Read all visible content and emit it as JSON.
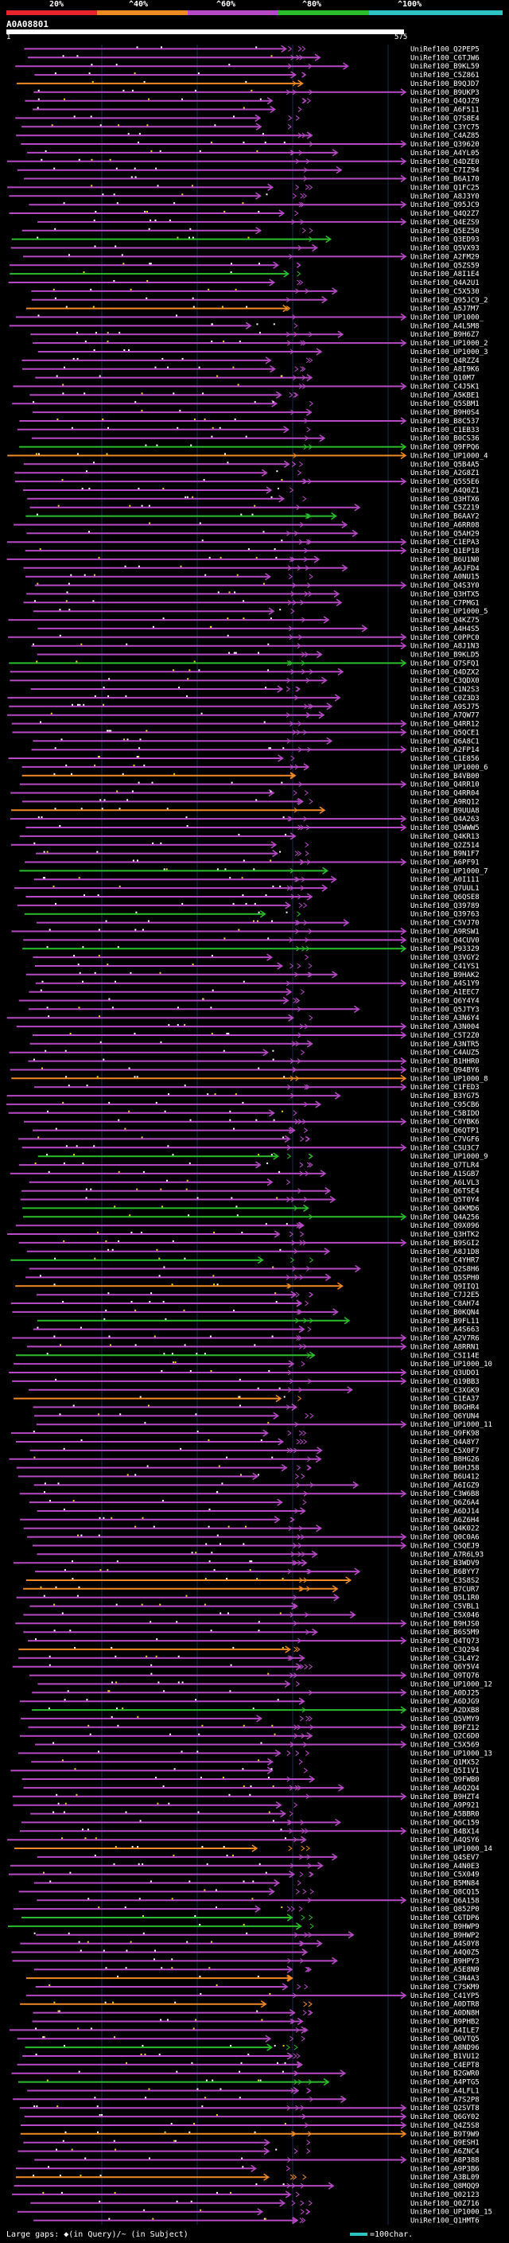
{
  "legend": {
    "labels": [
      "20%",
      "^40%",
      "^60%",
      "^80%",
      "^100%"
    ],
    "colors": [
      "#e8242c",
      "#f08a24",
      "#b64ac4",
      "#2bbd2b",
      "#2cc3c3"
    ]
  },
  "query": {
    "id": "A0A08801",
    "start": "1",
    "end": "575"
  },
  "chart_data": {
    "type": "alignment-overview",
    "query_length": 575,
    "hits": [
      "UniRef100_Q2PEP5",
      "UniRef100_C6TJW6",
      "UniRef100_B9KL59",
      "UniRef100_C5Z861",
      "UniRef100_B9QJD7",
      "UniRef100_B9UKP3",
      "UniRef100_Q4QJZ9",
      "UniRef100_A6F511",
      "UniRef100_Q7S8E4",
      "UniRef100_C3YC75",
      "UniRef100_C4AZ85",
      "UniRef100_Q39620",
      "UniRef100_A4YL05",
      "UniRef100_Q4DZE0",
      "UniRef100_C7IZ94",
      "UniRef100_B6A170",
      "UniRef100_Q1FC25",
      "UniRef100_A8J3Y0",
      "UniRef100_Q95JC9",
      "UniRef100_Q4Q2Z7",
      "UniRef100_Q4EZS9",
      "UniRef100_Q5EZ50",
      "UniRef100_Q3ED93",
      "UniRef100_Q5VX93",
      "UniRef100_A2FM29",
      "UniRef100_Q5ZS59",
      "UniRef100_A8I1E4",
      "UniRef100_Q4A2U1",
      "UniRef100_C5X530",
      "UniRef100_Q95JC9_2",
      "UniRef100_A5J7M7",
      "UniRef100_UP1000_",
      "UniRef100_A4L5M8",
      "UniRef100_B9H6Z7",
      "UniRef100_UP1000_2",
      "UniRef100_UP1000_3",
      "UniRef100_Q4RZZ4",
      "UniRef100_A8I9K6",
      "UniRef100_Q10M7",
      "UniRef100_C4J5K1",
      "UniRef100_A5KBE1",
      "UniRef100_Q5SBM1",
      "UniRef100_B9H0S4",
      "UniRef100_B8C537",
      "UniRef100_C1EB33",
      "UniRef100_B0CS36",
      "UniRef100_Q9FPQ6",
      "UniRef100_UP1000_4",
      "UniRef100_Q5B4A5",
      "UniRef100_A2G8Z1",
      "UniRef100_Q5S5E6",
      "UniRef100_A4Q0Z1",
      "UniRef100_Q3HTX6",
      "UniRef100_C5Z219",
      "UniRef100_B6AAY2",
      "UniRef100_A6RR08",
      "UniRef100_Q5AH29",
      "UniRef100_C1EPA3",
      "UniRef100_Q1EP18",
      "UniRef100_B6U1N0",
      "UniRef100_A6JFD4",
      "UniRef100_A0NU15",
      "UniRef100_Q4S3Y0",
      "UniRef100_Q3HTX5",
      "UniRef100_C7PMG1",
      "UniRef100_UP1000_5",
      "UniRef100_Q4KZ75",
      "UniRef100_A4H4S5",
      "UniRef100_C0PPC0",
      "UniRef100_A8J1N3",
      "UniRef100_B9KLD5",
      "UniRef100_Q7SFQ1",
      "UniRef100_Q4DZX2",
      "UniRef100_C3QDX0",
      "UniRef100_C1N2S3",
      "UniRef100_C0Z3D3",
      "UniRef100_A9SJ75",
      "UniRef100_A7QW77",
      "UniRef100_Q4RR12",
      "UniRef100_Q5QCE1",
      "UniRef100_Q6A8C1",
      "UniRef100_A2FP14",
      "UniRef100_C1E856",
      "UniRef100_UP1000_6",
      "UniRef100_B4VB00",
      "UniRef100_Q4RR10",
      "UniRef100_Q4RR04",
      "UniRef100_A9RQ12",
      "UniRef100_B9UUA8",
      "UniRef100_Q4A263",
      "UniRef100_Q5WWW5",
      "UniRef100_Q4KR13",
      "UniRef100_Q2Z514",
      "UniRef100_B9N1F7",
      "UniRef100_A6PF91",
      "UniRef100_UP1000_7",
      "UniRef100_A0I111",
      "UniRef100_Q7UUL1",
      "UniRef100_Q6QSE8",
      "UniRef100_Q39789",
      "UniRef100_Q39763",
      "UniRef100_C5VJ70",
      "UniRef100_A9RSW1",
      "UniRef100_Q4CUV0",
      "UniRef100_P93329",
      "UniRef100_Q3VGY2",
      "UniRef100_C41YS1",
      "UniRef100_B9HAK2",
      "UniRef100_A4S1Y9",
      "UniRef100_A1EEC7",
      "UniRef100_Q6Y4Y4",
      "UniRef100_Q5JTY3",
      "UniRef100_A3N6Y4",
      "UniRef100_A3N004",
      "UniRef100_C5T2Z0",
      "UniRef100_A3NTR5",
      "UniRef100_C4AUZ5",
      "UniRef100_B1HHR0",
      "UniRef100_Q94BY6",
      "UniRef100_UP1000_8",
      "UniRef100_C1FED3",
      "UniRef100_B3YG75",
      "UniRef100_C95CB6",
      "UniRef100_C5BIDO",
      "UniRef100_C0YBK6",
      "UniRef100_Q6QTP1",
      "UniRef100_C7VGF6",
      "UniRef100_C5U3C7",
      "UniRef100_UP1000_9",
      "UniRef100_Q7TLR4",
      "UniRef100_A1SGB7",
      "UniRef100_A6LVL3",
      "UniRef100_Q6TSE4",
      "UniRef100_Q5T0Y4",
      "UniRef100_Q4KMD6",
      "UniRef100_Q4A256",
      "UniRef100_Q9X096",
      "UniRef100_Q3HTK2",
      "UniRef100_B9SGI2",
      "UniRef100_A8J1D8",
      "UniRef100_C4YHR7",
      "UniRef100_Q2S8H6",
      "UniRef100_Q5SPH0",
      "UniRef100_Q9IIQ1",
      "UniRef100_C7J2E5",
      "UniRef100_C8AH74",
      "UniRef100_B0KQN4",
      "UniRef100_B9FL11",
      "UniRef100_A4S663",
      "UniRef100_A2V7R6",
      "UniRef100_A8RRN1",
      "UniRef100_C5I14E",
      "UniRef100_UP1000_10",
      "UniRef100_Q3UDO1",
      "UniRef100_Q19BB3",
      "UniRef100_C3XGK9",
      "UniRef100_C1EA37",
      "UniRef100_B0GHR4",
      "UniRef100_Q6YUN4",
      "UniRef100_UP1000_11",
      "UniRef100_Q9FK98",
      "UniRef100_Q4A8Y7",
      "UniRef100_C5X0F7",
      "UniRef100_B8HG26",
      "UniRef100_B6HJ58",
      "UniRef100_B6U412",
      "UniRef100_A6IGZ9",
      "UniRef100_C3W6B8",
      "UniRef100_Q6Z6A4",
      "UniRef100_A6DJ14",
      "UniRef100_A6Z6H4",
      "UniRef100_Q4K022",
      "UniRef100_Q0C0A6",
      "UniRef100_C5QEJ9",
      "UniRef100_A7R6L93",
      "UniRef100_B3WDV9",
      "UniRef100_B6BYY7",
      "UniRef100_C3S8S2",
      "UniRef100_B7CUR7",
      "UniRef100_Q5L1R0",
      "UniRef100_C5VBL1",
      "UniRef100_C5X046",
      "UniRef100_B9HJS0",
      "UniRef100_B6S5M9",
      "UniRef100_Q4TQ73",
      "UniRef100_C3Q294",
      "UniRef100_C3L4Y2",
      "UniRef100_Q6Y5V4",
      "UniRef100_Q9TQ76",
      "UniRef100_UP1000_12",
      "UniRef100_A0DJ25",
      "UniRef100_A6DJG9",
      "UniRef100_A2DXB8",
      "UniRef100_Q5VMY9",
      "UniRef100_B9FZ12",
      "UniRef100_Q2C6D0",
      "UniRef100_C5X569",
      "UniRef100_UP1000_13",
      "UniRef100_Q1MX52",
      "UniRef100_Q5I1V1",
      "UniRef100_Q9FWB0",
      "UniRef100_A6Q2Q4",
      "UniRef100_B9HZT4",
      "UniRef100_A9P921",
      "UniRef100_A5BBR0",
      "UniRef100_Q6C159",
      "UniRef100_B4BX14",
      "UniRef100_A4QSY6",
      "UniRef100_UP1000_14",
      "UniRef100_Q4SEV7",
      "UniRef100_A4N0E3",
      "UniRef100_C5X049",
      "UniRef100_B5MN84",
      "UniRef100_Q8CQ15",
      "UniRef100_Q6A158",
      "UniRef100_Q852P0",
      "UniRef100_C6TDP6",
      "UniRef100_B9HWP9",
      "UniRef100_B9HWP2",
      "UniRef100_A4S0Y8",
      "UniRef100_A4Q0Z5",
      "UniRef100_B9HPY3",
      "UniRef100_A5E8N9",
      "UniRef100_C3N4A3",
      "UniRef100_C7SKM9",
      "UniRef100_C41YP5",
      "UniRef100_A0DTR8",
      "UniRef100_A0DN8H",
      "UniRef100_B9PHB2",
      "UniRef100_A4ILE7",
      "UniRef100_Q6VTQ5",
      "UniRef100_A8ND96",
      "UniRef100_B1VU12",
      "UniRef100_C4EPT8",
      "UniRef100_B2GWR0",
      "UniRef100_A4PTG5",
      "UniRef100_A4LFL1",
      "UniRef100_A7S2P8",
      "UniRef100_Q2SVT8",
      "UniRef100_Q6GY02",
      "UniRef100_Q4Z5S8",
      "UniRef100_B9T9W9",
      "UniRef100_Q9ESH1",
      "UniRef100_A6ZNC4",
      "UniRef100_A8P388",
      "UniRef100_A9P3B6",
      "UniRef100_A3BL09",
      "UniRef100_Q8MQQ9",
      "UniRef100_Q02123",
      "UniRef100_Q0Z716",
      "UniRef100_UP1000_15",
      "UniRef100_Q1HMT6"
    ]
  },
  "footer": {
    "gaps_text": "Large gaps: ◆(in Query)/~ (in Subject)",
    "scale_text": "=100char."
  }
}
